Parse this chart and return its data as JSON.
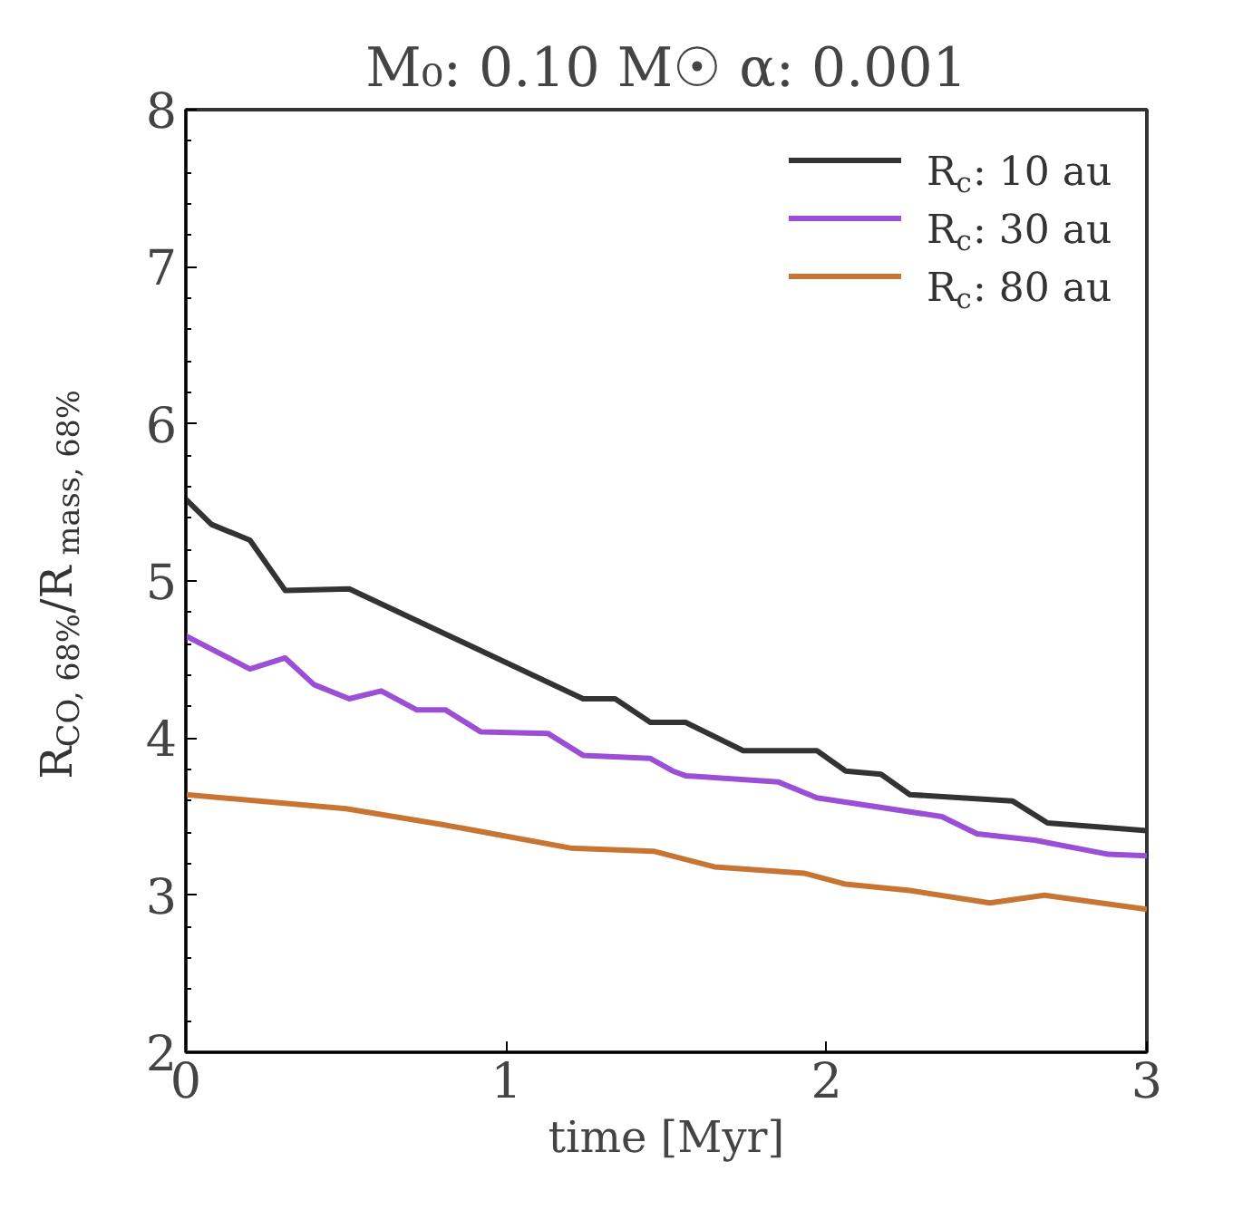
{
  "chart_data": {
    "type": "line",
    "title": "M₀: 0.10 M☉ α: 0.001",
    "xlabel": "time [Myr]",
    "ylabel": "R$_{CO, 68%}$/R$_{mass, 68%}$",
    "xlim": [
      0,
      3
    ],
    "ylim": [
      2,
      8
    ],
    "xticks": [
      0,
      1,
      2,
      3
    ],
    "yticks": [
      2,
      3,
      4,
      5,
      6,
      7,
      8
    ],
    "grid": false,
    "legend": "top right",
    "line_style": "solid",
    "marker": "none",
    "series": [
      {
        "name": "R$_{c}$: 10 au",
        "color": "#333333",
        "x": [
          0,
          0.08,
          0.2,
          0.31,
          0.51,
          1.24,
          1.34,
          1.45,
          1.56,
          1.74,
          1.97,
          2.06,
          2.17,
          2.26,
          2.58,
          2.69,
          3.0
        ],
        "values": [
          5.52,
          5.36,
          5.26,
          4.94,
          4.95,
          4.25,
          4.25,
          4.1,
          4.1,
          3.92,
          3.92,
          3.79,
          3.77,
          3.64,
          3.6,
          3.46,
          3.41
        ]
      },
      {
        "name": "R$_{c}$: 30 au",
        "color": "#9b4fd6",
        "x": [
          0,
          0.2,
          0.31,
          0.4,
          0.51,
          0.61,
          0.72,
          0.81,
          0.92,
          1.13,
          1.24,
          1.45,
          1.52,
          1.56,
          1.85,
          1.97,
          2.36,
          2.47,
          2.65,
          2.88,
          3.0
        ],
        "values": [
          4.65,
          4.44,
          4.51,
          4.34,
          4.25,
          4.3,
          4.18,
          4.18,
          4.04,
          4.03,
          3.89,
          3.87,
          3.79,
          3.76,
          3.72,
          3.62,
          3.5,
          3.39,
          3.35,
          3.26,
          3.25
        ]
      },
      {
        "name": "R$_{c}$: 80 au",
        "color": "#c87533",
        "x": [
          0,
          0.5,
          0.8,
          1.2,
          1.46,
          1.65,
          1.93,
          2.06,
          2.26,
          2.51,
          2.68,
          3.0
        ],
        "values": [
          3.64,
          3.55,
          3.45,
          3.3,
          3.28,
          3.18,
          3.14,
          3.07,
          3.03,
          2.95,
          3.0,
          2.91
        ]
      }
    ]
  }
}
